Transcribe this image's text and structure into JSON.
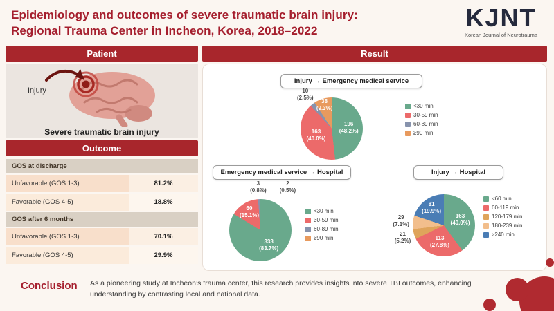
{
  "header": {
    "title_line1": "Epidemiology and outcomes of severe traumatic brain injury:",
    "title_line2": "Regional Trauma Center in Incheon, Korea, 2018–2022",
    "logo_acronym": "KJNT",
    "logo_subtitle": "Korean Journal of Neurotrauma"
  },
  "panels": {
    "patient_header": "Patient",
    "outcome_header": "Outcome",
    "result_header": "Result"
  },
  "patient": {
    "injury_label": "Injury",
    "caption": "Severe traumatic brain injury"
  },
  "outcome": {
    "sections": [
      {
        "title": "GOS at discharge",
        "rows": [
          {
            "label": "Unfavorable (GOS 1-3)",
            "value": "81.2%"
          },
          {
            "label": "Favorable (GOS 4-5)",
            "value": "18.8%"
          }
        ]
      },
      {
        "title": "GOS after 6 months",
        "rows": [
          {
            "label": "Unfavorable (GOS 1-3)",
            "value": "70.1%"
          },
          {
            "label": "Favorable (GOS 4-5)",
            "value": "29.9%"
          }
        ]
      }
    ]
  },
  "chart_data": [
    {
      "type": "pie",
      "title": "Injury → Emergency medical service",
      "legend_position": "right",
      "slices": [
        {
          "label": "<30 min",
          "count": 196,
          "percent": 48.2,
          "percent_text": "48.2%",
          "color": "#69A98C"
        },
        {
          "label": "30-59 min",
          "count": 163,
          "percent": 40.0,
          "percent_text": "40.0%",
          "color": "#EC6A6A"
        },
        {
          "label": "60-89 min",
          "count": 10,
          "percent": 2.5,
          "percent_text": "2.5%",
          "color": "#8793AD"
        },
        {
          "label": "≥90 min",
          "count": 38,
          "percent": 9.3,
          "percent_text": "9.3%",
          "color": "#E89A5E"
        }
      ]
    },
    {
      "type": "pie",
      "title": "Emergency medical service → Hospital",
      "legend_position": "right",
      "slices": [
        {
          "label": "<30 min",
          "count": 333,
          "percent": 83.7,
          "percent_text": "83.7%",
          "color": "#69A98C"
        },
        {
          "label": "30-59 min",
          "count": 60,
          "percent": 15.1,
          "percent_text": "15.1%",
          "color": "#EC6A6A"
        },
        {
          "label": "60-89 min",
          "count": 3,
          "percent": 0.8,
          "percent_text": "0.8%",
          "color": "#8793AD"
        },
        {
          "label": "≥90 min",
          "count": 2,
          "percent": 0.5,
          "percent_text": "0.5%",
          "color": "#E89A5E"
        }
      ]
    },
    {
      "type": "pie",
      "title": "Injury → Hospital",
      "legend_position": "right",
      "slices": [
        {
          "label": "<60 min",
          "count": 163,
          "percent": 40.0,
          "percent_text": "40.0%",
          "color": "#69A98C"
        },
        {
          "label": "60-119 min",
          "count": 113,
          "percent": 27.8,
          "percent_text": "27.8%",
          "color": "#EC6A6A"
        },
        {
          "label": "120-179 min",
          "count": 21,
          "percent": 5.2,
          "percent_text": "5.2%",
          "color": "#DFA45B"
        },
        {
          "label": "180-239 min",
          "count": 29,
          "percent": 7.1,
          "percent_text": "7.1%",
          "color": "#F2BE8C"
        },
        {
          "label": "≥240 min",
          "count": 81,
          "percent": 19.9,
          "percent_text": "19.9%",
          "color": "#4A7DB5"
        }
      ]
    }
  ],
  "conclusion": {
    "header": "Conclusion",
    "text": "As a pioneering study at Incheon’s trauma center, this research provides insights into severe TBI outcomes, enhancing understanding by contrasting local and national data."
  }
}
